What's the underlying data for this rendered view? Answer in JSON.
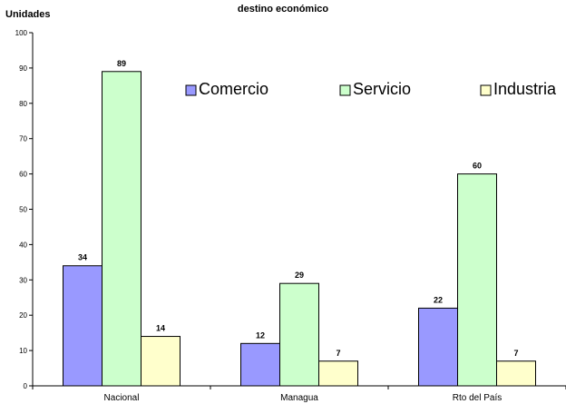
{
  "chart_data": {
    "type": "bar",
    "title": "destino económico",
    "xlabel": "",
    "ylabel": "Unidades",
    "ylim": [
      0,
      100
    ],
    "yticks": [
      0,
      10,
      20,
      30,
      40,
      50,
      60,
      70,
      80,
      90,
      100
    ],
    "categories": [
      "Nacional",
      "Managua",
      "Rto del País"
    ],
    "series": [
      {
        "name": "Comercio",
        "values": [
          34,
          12,
          22
        ],
        "color": "#9999ff"
      },
      {
        "name": "Servicio",
        "values": [
          89,
          29,
          60
        ],
        "color": "#ccffcc"
      },
      {
        "name": "Industria",
        "values": [
          14,
          7,
          7
        ],
        "color": "#ffffcc"
      }
    ],
    "grid": false,
    "legend_position": "top-right",
    "data_labels": true
  }
}
